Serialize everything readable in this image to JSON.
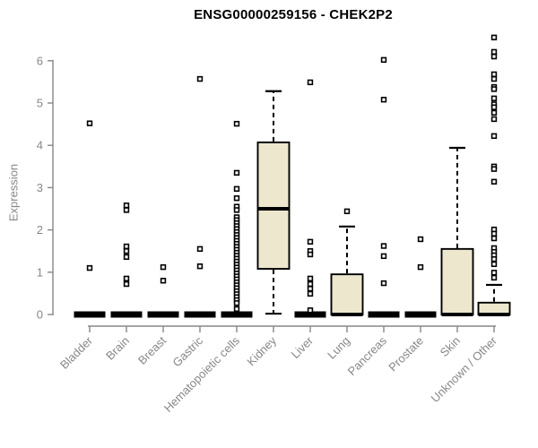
{
  "chart_data": {
    "type": "boxplot",
    "title": "ENSG00000259156 - CHEK2P2",
    "ylabel": "Expression",
    "ylim": [
      0,
      6.6
    ],
    "yticks": [
      0,
      1,
      2,
      3,
      4,
      5,
      6
    ],
    "grid": false,
    "legend": "none",
    "categories": [
      "Bladder",
      "Brain",
      "Breast",
      "Gastric",
      "Hematopoietic cells",
      "Kidney",
      "Liver",
      "Lung",
      "Pancreas",
      "Prostate",
      "Skin",
      "Unknown / Other"
    ],
    "boxes": [
      {
        "category": "Bladder",
        "q1": 0,
        "median": 0,
        "q3": 0,
        "whisker_low": 0,
        "whisker_high": 0,
        "outliers": [
          4.52,
          1.1
        ]
      },
      {
        "category": "Brain",
        "q1": 0,
        "median": 0,
        "q3": 0,
        "whisker_low": 0,
        "whisker_high": 0,
        "outliers": [
          2.58,
          2.47,
          1.61,
          1.5,
          1.36,
          0.85,
          0.72
        ]
      },
      {
        "category": "Breast",
        "q1": 0,
        "median": 0,
        "q3": 0,
        "whisker_low": 0,
        "whisker_high": 0,
        "outliers": [
          1.12,
          0.8
        ]
      },
      {
        "category": "Gastric",
        "q1": 0,
        "median": 0,
        "q3": 0,
        "whisker_low": 0,
        "whisker_high": 0,
        "outliers": [
          5.57,
          1.55,
          1.14
        ]
      },
      {
        "category": "Hematopoietic cells",
        "q1": 0,
        "median": 0,
        "q3": 0,
        "whisker_low": 0,
        "whisker_high": 0,
        "outliers": [
          4.51,
          3.35,
          2.97,
          2.75,
          2.55,
          2.47,
          2.3,
          2.23,
          2.16,
          2.09,
          2.02,
          1.95,
          1.88,
          1.81,
          1.74,
          1.67,
          1.6,
          1.53,
          1.46,
          1.39,
          1.32,
          1.25,
          1.18,
          1.11,
          1.04,
          0.97,
          0.9,
          0.83,
          0.76,
          0.69,
          0.62,
          0.55,
          0.48,
          0.41,
          0.34,
          0.27,
          0.13
        ]
      },
      {
        "category": "Kidney",
        "q1": 1.08,
        "median": 2.5,
        "q3": 4.07,
        "whisker_low": 0.02,
        "whisker_high": 5.28,
        "outliers": []
      },
      {
        "category": "Liver",
        "q1": 0,
        "median": 0,
        "q3": 0,
        "whisker_low": 0,
        "whisker_high": 0,
        "outliers": [
          5.49,
          1.72,
          1.5,
          1.42,
          0.85,
          0.72,
          0.61,
          0.49,
          0.1
        ]
      },
      {
        "category": "Lung",
        "q1": 0,
        "median": 0,
        "q3": 0.95,
        "whisker_low": 0,
        "whisker_high": 2.08,
        "outliers": [
          2.44
        ]
      },
      {
        "category": "Pancreas",
        "q1": 0,
        "median": 0,
        "q3": 0,
        "whisker_low": 0,
        "whisker_high": 0,
        "outliers": [
          6.02,
          5.08,
          1.62,
          1.38,
          0.74
        ]
      },
      {
        "category": "Prostate",
        "q1": 0,
        "median": 0,
        "q3": 0,
        "whisker_low": 0,
        "whisker_high": 0,
        "outliers": [
          1.78,
          1.12
        ]
      },
      {
        "category": "Skin",
        "q1": 0,
        "median": 0,
        "q3": 1.55,
        "whisker_low": 0,
        "whisker_high": 3.94,
        "outliers": []
      },
      {
        "category": "Unknown / Other",
        "q1": 0,
        "median": 0,
        "q3": 0.28,
        "whisker_low": 0,
        "whisker_high": 0.7,
        "outliers": [
          6.55,
          6.21,
          6.1,
          5.68,
          5.57,
          5.38,
          5.33,
          5.11,
          4.97,
          4.9,
          4.77,
          4.62,
          4.22,
          3.5,
          3.44,
          3.14,
          2.01,
          1.91,
          1.8,
          1.57,
          1.48,
          1.4,
          1.31,
          1.19,
          0.99,
          0.87
        ]
      }
    ],
    "colors": {
      "box_fill": "#ece7cd",
      "box_stroke": "#000000",
      "median": "#000000",
      "outlier_stroke": "#000000",
      "axis": "#878787",
      "title": "#000000"
    }
  }
}
